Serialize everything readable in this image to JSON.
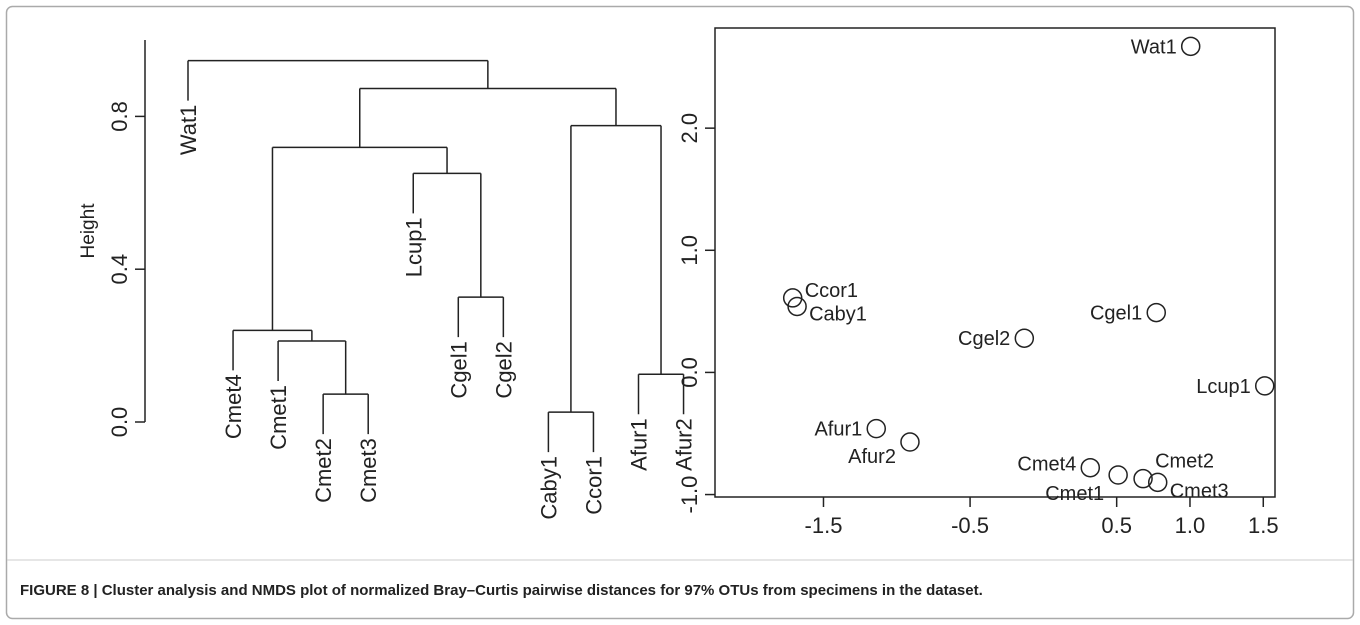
{
  "chart_data": [
    {
      "type": "dendrogram",
      "ylabel": "Height",
      "leaves": [
        "Wat1",
        "Cmet4",
        "Cmet1",
        "Cmet2",
        "Cmet3",
        "Lcup1",
        "Cgel1",
        "Cgel2",
        "Caby1",
        "Ccor1",
        "Afur1",
        "Afur2"
      ],
      "merges": [
        {
          "children": [
            -9,
            -10
          ],
          "height": 0.026
        },
        {
          "children": [
            -4,
            -5
          ],
          "height": 0.073
        },
        {
          "children": [
            -11,
            -12
          ],
          "height": 0.125
        },
        {
          "children": [
            -3,
            2
          ],
          "height": 0.212
        },
        {
          "children": [
            -2,
            4
          ],
          "height": 0.24
        },
        {
          "children": [
            -7,
            -8
          ],
          "height": 0.327
        },
        {
          "children": [
            -6,
            6
          ],
          "height": 0.651
        },
        {
          "children": [
            5,
            7
          ],
          "height": 0.719
        },
        {
          "children": [
            1,
            3
          ],
          "height": 0.776
        },
        {
          "children": [
            8,
            9
          ],
          "height": 0.873
        },
        {
          "children": [
            -1,
            10
          ],
          "height": 0.946
        }
      ],
      "ylim": [
        0,
        1.0
      ],
      "yticks": [
        {
          "value": 0,
          "label": "0.0"
        },
        {
          "value": 0.4,
          "label": "0.4"
        },
        {
          "value": 0.8,
          "label": "0.8"
        }
      ],
      "color": "#222222"
    },
    {
      "type": "scatter",
      "labels": [
        "Wat1",
        "Ccor1",
        "Caby1",
        "Cgel1",
        "Cgel2",
        "Lcup1",
        "Afur1",
        "Afur2",
        "Cmet4",
        "Cmet1",
        "Cmet2",
        "Cmet3"
      ],
      "x": [
        1.005,
        -1.71,
        -1.68,
        0.77,
        -0.13,
        1.51,
        -1.14,
        -0.91,
        0.32,
        0.51,
        0.68,
        0.78
      ],
      "y": [
        2.67,
        0.61,
        0.54,
        0.49,
        0.28,
        -0.11,
        -0.46,
        -0.57,
        -0.78,
        -0.84,
        -0.87,
        -0.9
      ],
      "xlim": [
        -2.24,
        1.58
      ],
      "ylim": [
        -1.02,
        2.82
      ],
      "xticks": [
        -1.5,
        -0.5,
        0.5,
        {
          "value": 1.0,
          "label": "1.0"
        },
        1.5
      ],
      "yticks": [
        {
          "value": -1.0,
          "label": "-1.0"
        },
        {
          "value": 0,
          "label": "0.0"
        },
        {
          "value": 1.0,
          "label": "1.0"
        },
        {
          "value": 2.0,
          "label": "2.0"
        }
      ],
      "color": "#222222"
    }
  ],
  "caption": "FIGURE 8 | Cluster analysis and NMDS plot of normalized Bray–Curtis pairwise distances for 97% OTUs from specimens in the dataset."
}
